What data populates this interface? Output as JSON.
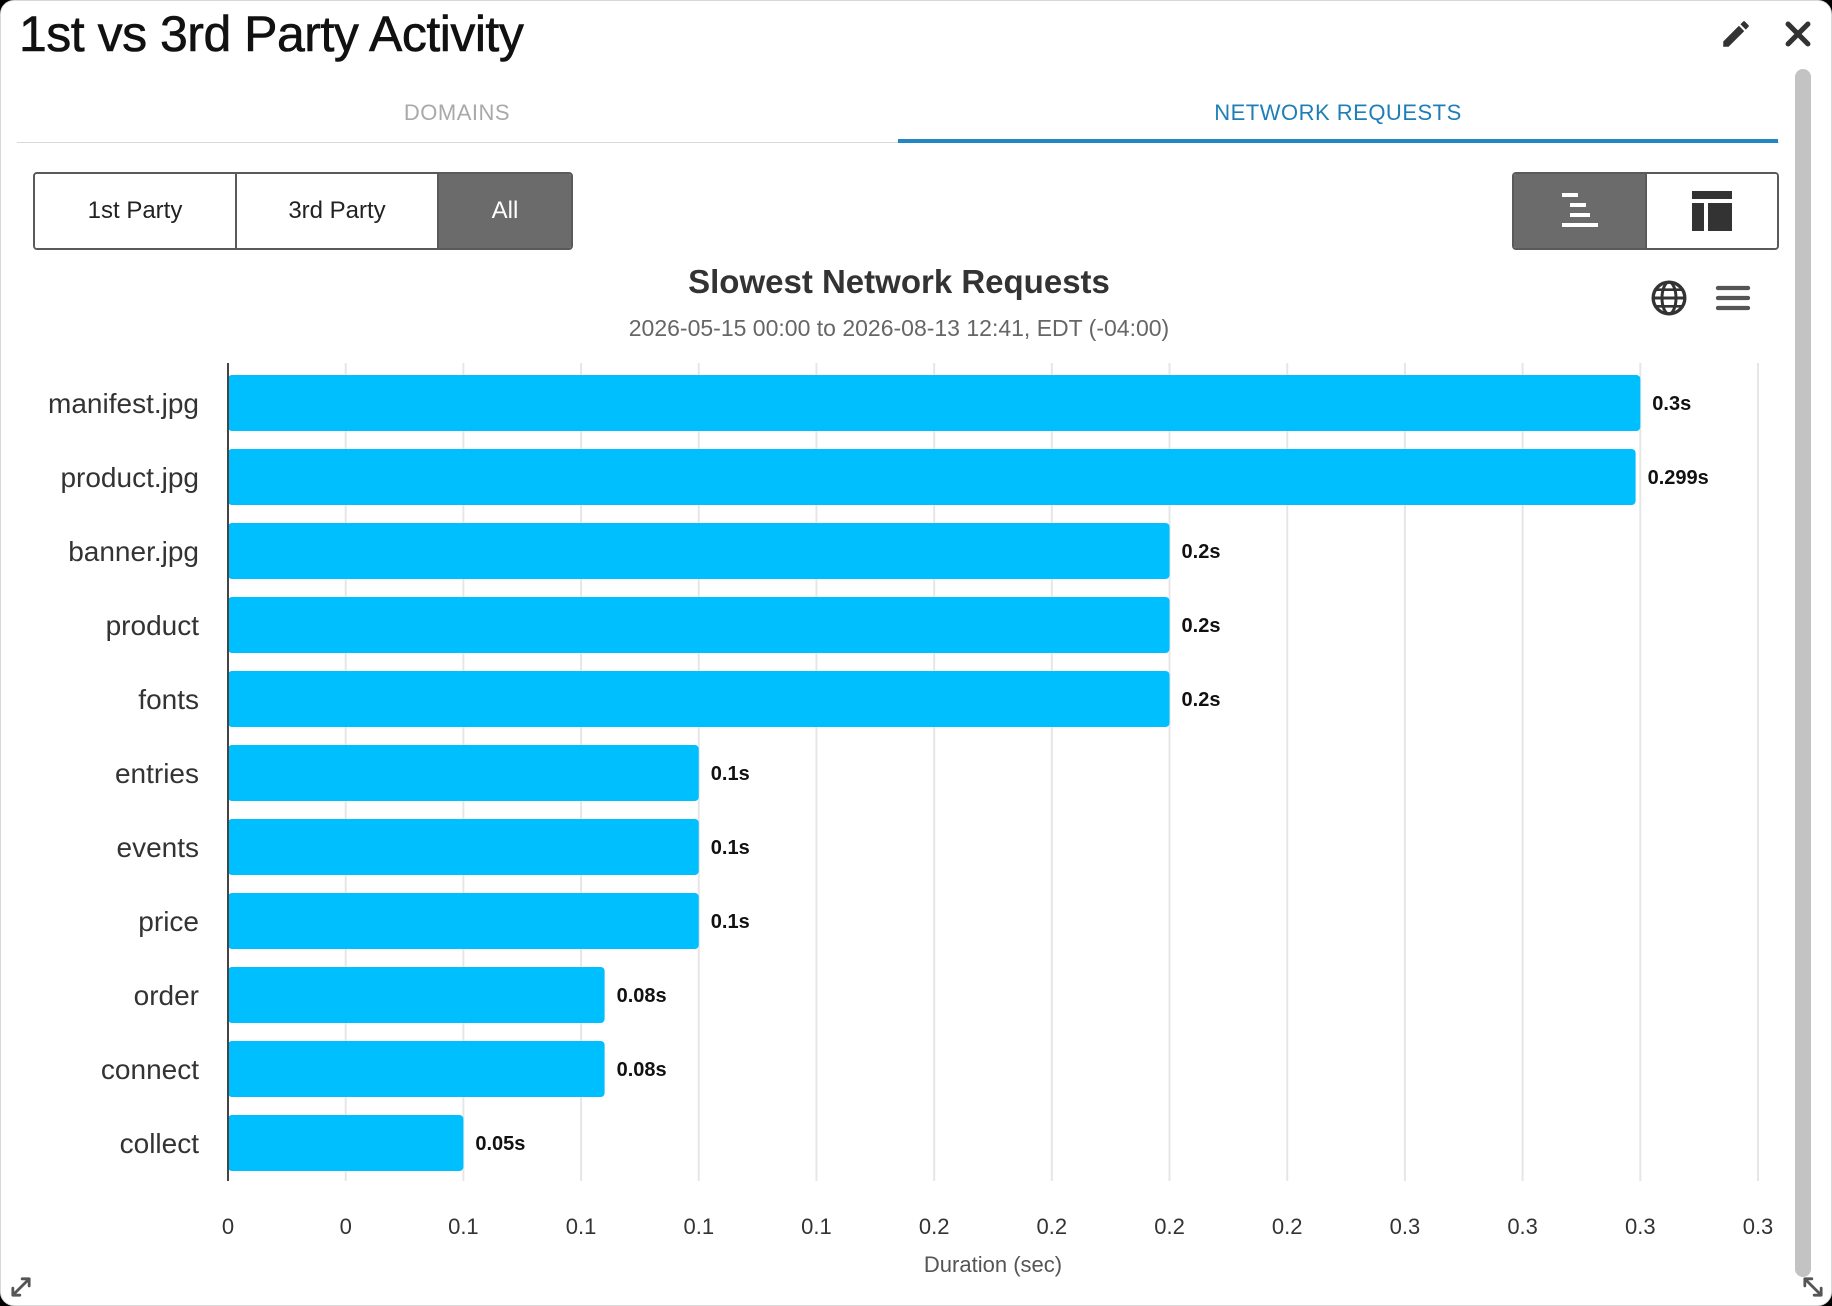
{
  "window": {
    "title": "1st vs 3rd Party Activity",
    "edit_icon": "pencil-icon",
    "close_icon": "close-icon"
  },
  "tabs": [
    {
      "label": "DOMAINS",
      "active": false
    },
    {
      "label": "NETWORK REQUESTS",
      "active": true
    }
  ],
  "filters": {
    "items": [
      {
        "label": "1st Party",
        "selected": false
      },
      {
        "label": "3rd Party",
        "selected": false
      },
      {
        "label": "All",
        "selected": true
      }
    ]
  },
  "view_toggle": [
    {
      "icon": "waterfall-chart-icon",
      "selected": true
    },
    {
      "icon": "table-layout-icon",
      "selected": false
    }
  ],
  "chart_tools": {
    "globe_icon": "globe-icon",
    "menu_icon": "hamburger-menu-icon"
  },
  "colors": {
    "bar": "#00bfff",
    "accent": "#2186c2",
    "selected_segment": "#6b6b6b"
  },
  "chart_data": {
    "type": "bar",
    "orientation": "horizontal",
    "title": "Slowest Network Requests",
    "subtitle": "2026-05-15 00:00 to 2026-08-13 12:41, EDT (-04:00)",
    "xlabel": "Duration (sec)",
    "ylabel": "",
    "xlim": [
      0,
      0.325
    ],
    "grid": true,
    "categories": [
      "manifest.jpg",
      "product.jpg",
      "banner.jpg",
      "product",
      "fonts",
      "entries",
      "events",
      "price",
      "order",
      "connect",
      "collect"
    ],
    "values": [
      0.3,
      0.299,
      0.2,
      0.2,
      0.2,
      0.1,
      0.1,
      0.1,
      0.08,
      0.08,
      0.05
    ],
    "data_labels": [
      "0.3s",
      "0.299s",
      "0.2s",
      "0.2s",
      "0.2s",
      "0.1s",
      "0.1s",
      "0.1s",
      "0.08s",
      "0.08s",
      "0.05s"
    ],
    "ticks": [
      0,
      0.025,
      0.05,
      0.075,
      0.1,
      0.125,
      0.15,
      0.175,
      0.2,
      0.225,
      0.25,
      0.275,
      0.3,
      0.325
    ],
    "tick_labels": [
      "0",
      "0",
      "0.1",
      "0.1",
      "0.1",
      "0.1",
      "0.2",
      "0.2",
      "0.2",
      "0.2",
      "0.3",
      "0.3",
      "0.3",
      "0.3"
    ]
  }
}
